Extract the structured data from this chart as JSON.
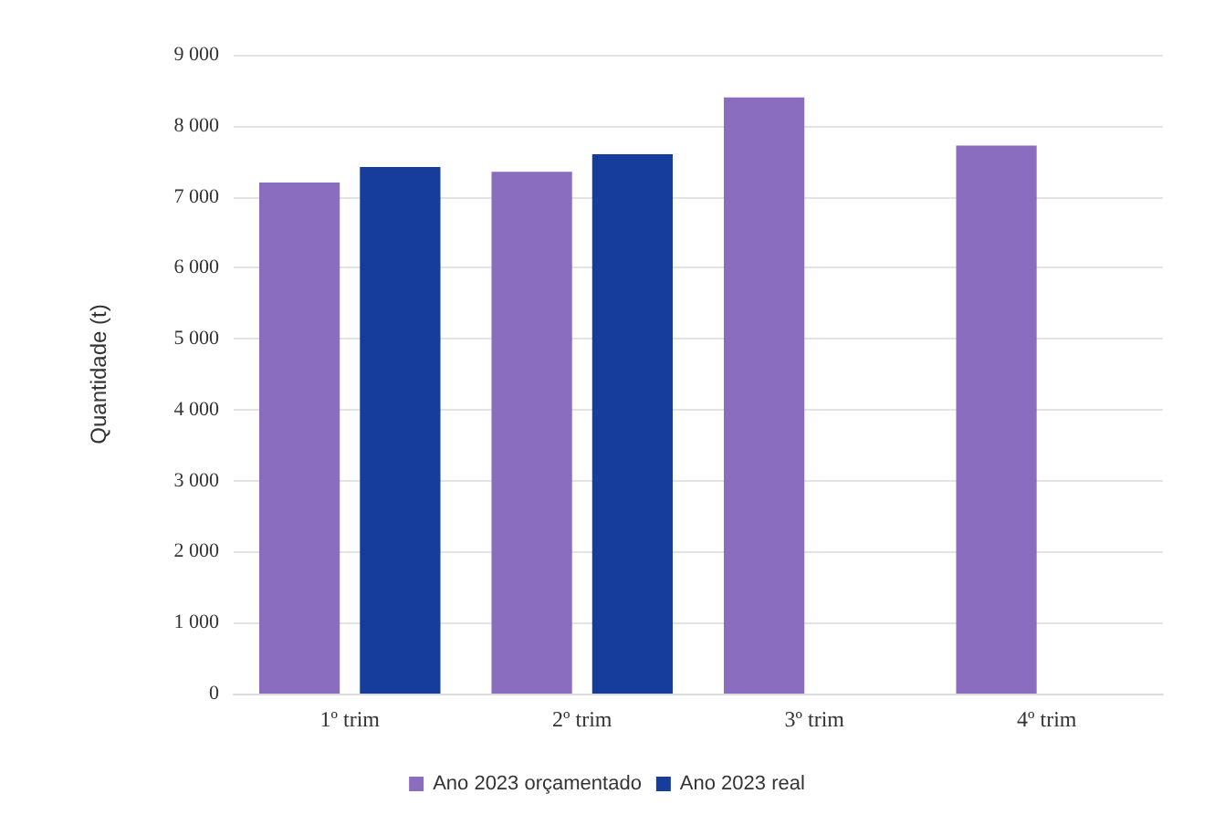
{
  "chart_data": {
    "type": "bar",
    "ylabel": "Quantidade (t)",
    "categories": [
      "1º trim",
      "2º trim",
      "3º trim",
      "4º trim"
    ],
    "series": [
      {
        "name": "Ano 2023 orçamentado",
        "color": "#8a6dbf",
        "values": [
          7200,
          7350,
          8400,
          7720
        ]
      },
      {
        "name": "Ano 2023 real",
        "color": "#163c9c",
        "values": [
          7420,
          7600,
          null,
          null
        ]
      }
    ],
    "ylim": [
      0,
      9000
    ],
    "yticks": [
      {
        "value": 0,
        "label": "0"
      },
      {
        "value": 1000,
        "label": "1 000"
      },
      {
        "value": 2000,
        "label": "2 000"
      },
      {
        "value": 3000,
        "label": "3 000"
      },
      {
        "value": 4000,
        "label": "4 000"
      },
      {
        "value": 5000,
        "label": "5 000"
      },
      {
        "value": 6000,
        "label": "6 000"
      },
      {
        "value": 7000,
        "label": "7 000"
      },
      {
        "value": 8000,
        "label": "8 000"
      },
      {
        "value": 9000,
        "label": "9 000"
      }
    ],
    "grid": "y",
    "legend": "bottom"
  }
}
